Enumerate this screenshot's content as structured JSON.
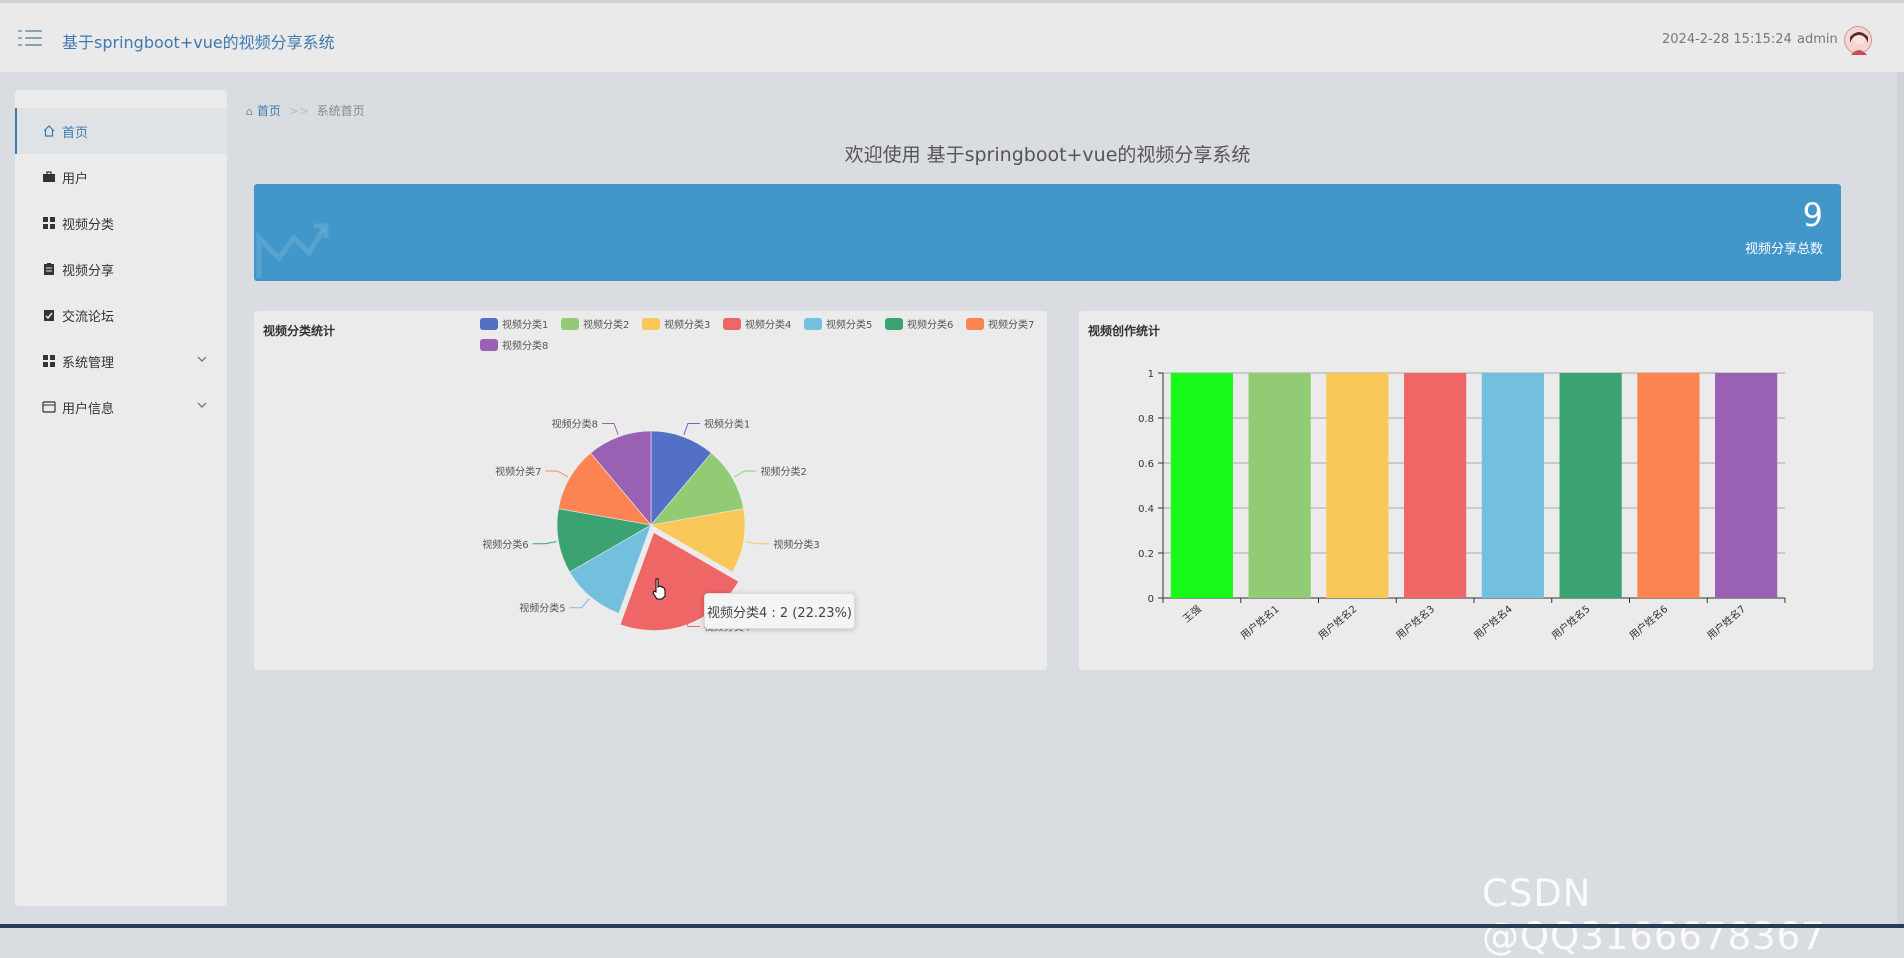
{
  "header": {
    "title": "基于springboot+vue的视频分享系统",
    "datetime": "2024-2-28 15:15:24",
    "username": "admin"
  },
  "sidebar": {
    "items": [
      {
        "label": "首页",
        "icon": "home-icon"
      },
      {
        "label": "用户",
        "icon": "briefcase-icon"
      },
      {
        "label": "视频分类",
        "icon": "grid-icon"
      },
      {
        "label": "视频分享",
        "icon": "clipboard-icon"
      },
      {
        "label": "交流论坛",
        "icon": "clipboard-check-icon"
      },
      {
        "label": "系统管理",
        "icon": "grid-icon"
      },
      {
        "label": "用户信息",
        "icon": "card-icon"
      }
    ]
  },
  "breadcrumb": {
    "home": "首页",
    "separator": ">>",
    "current": "系统首页"
  },
  "welcome": "欢迎使用 基于springboot+vue的视频分享系统",
  "stat": {
    "value": "9",
    "label": "视频分享总数"
  },
  "tooltip": "视频分类4 : 2 (22.23%)",
  "watermark": "CSDN @QQ3166678367",
  "colors": {
    "accent": "#3d7ab0",
    "banner": "#4197c9"
  },
  "chart_data": [
    {
      "type": "pie",
      "title": "视频分类统计",
      "categories": [
        "视频分类1",
        "视频分类2",
        "视频分类3",
        "视频分类4",
        "视频分类5",
        "视频分类6",
        "视频分类7",
        "视频分类8"
      ],
      "values": [
        1,
        1,
        1,
        2,
        1,
        1,
        1,
        1
      ],
      "colors": [
        "#5470c6",
        "#91cc75",
        "#fac858",
        "#ee6666",
        "#73c0de",
        "#3ba272",
        "#fc8452",
        "#9a60b4"
      ],
      "legend": "top",
      "highlighted": "视频分类4"
    },
    {
      "type": "bar",
      "title": "视频创作统计",
      "categories": [
        "王强",
        "用户姓名1",
        "用户姓名2",
        "用户姓名3",
        "用户姓名4",
        "用户姓名5",
        "用户姓名6",
        "用户姓名7"
      ],
      "values": [
        1,
        1,
        1,
        1,
        1,
        1,
        1,
        1
      ],
      "colors": [
        "#1afa1a",
        "#91cc75",
        "#fac858",
        "#ee6666",
        "#73c0de",
        "#3ba272",
        "#fc8452",
        "#9a60b4"
      ],
      "yticks": [
        "0",
        "0.2",
        "0.4",
        "0.6",
        "0.8",
        "1"
      ],
      "ylim": [
        0,
        1
      ],
      "grid": true
    }
  ]
}
